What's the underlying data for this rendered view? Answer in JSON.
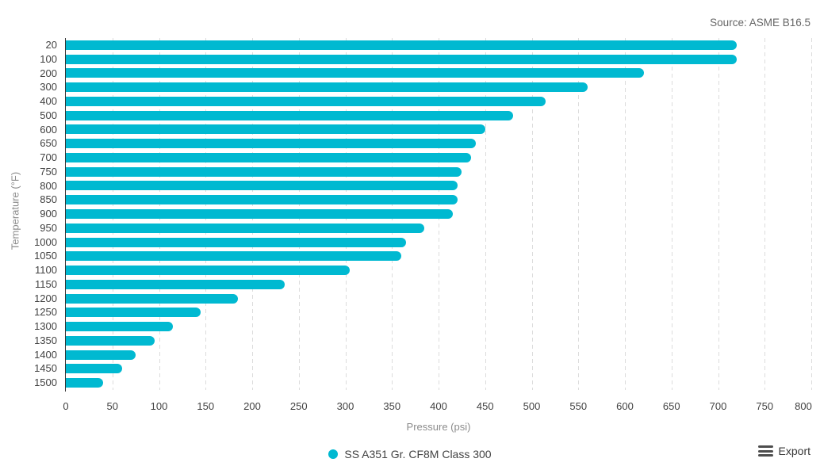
{
  "header": {
    "source_note": "Source: ASME B16.5"
  },
  "chart_data": {
    "type": "bar",
    "orientation": "horizontal",
    "title": "",
    "xlabel": "Pressure (psi)",
    "ylabel": "Temperature (°F)",
    "categories": [
      20,
      100,
      200,
      300,
      400,
      500,
      600,
      650,
      700,
      750,
      800,
      850,
      900,
      950,
      1000,
      1050,
      1100,
      1150,
      1200,
      1250,
      1300,
      1350,
      1400,
      1450,
      1500
    ],
    "series": [
      {
        "name": "SS A351 Gr. CF8M Class 300",
        "values": [
          720,
          720,
          620,
          560,
          515,
          480,
          450,
          440,
          435,
          425,
          420,
          420,
          415,
          385,
          365,
          360,
          305,
          235,
          185,
          145,
          115,
          95,
          75,
          60,
          40
        ]
      }
    ],
    "xlim": [
      0,
      800
    ],
    "x_ticks": [
      0,
      50,
      100,
      150,
      200,
      250,
      300,
      350,
      400,
      450,
      500,
      550,
      600,
      650,
      700,
      750,
      800
    ],
    "grid": "vertical-dashed",
    "legend_position": "bottom-center"
  },
  "legend": {
    "label": "SS A351 Gr. CF8M Class 300"
  },
  "toolbar": {
    "export_label": "Export"
  },
  "colors": {
    "bar": "#00b9d1",
    "axis_line": "#333333",
    "gridline": "#dcdcdc",
    "tick_label": "#424242",
    "axis_title": "#8c8c8c",
    "source_text": "#666666",
    "legend_text": "#424242",
    "export_text": "#383838",
    "export_icon": "#4d4d4d"
  }
}
